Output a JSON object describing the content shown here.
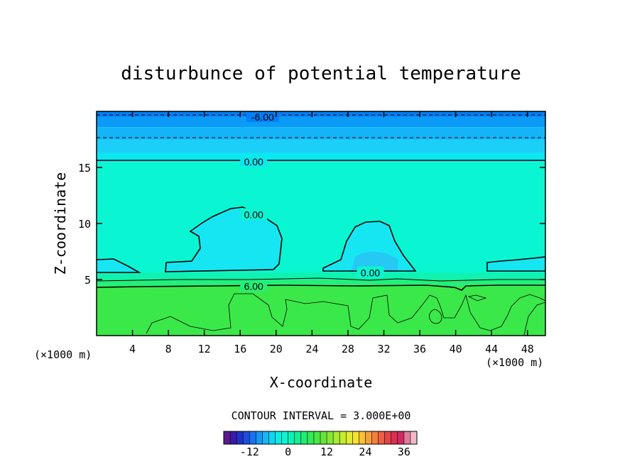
{
  "chart_data": {
    "type": "contour-filled",
    "title": "disturbunce of potential temperature",
    "xlabel": "X-coordinate",
    "ylabel": "Z-coordinate",
    "x_unit": "(×1000 m)",
    "y_unit": "(×1000 m)",
    "xlim": [
      0,
      50
    ],
    "ylim": [
      0,
      20
    ],
    "xticks": [
      4,
      8,
      12,
      16,
      20,
      24,
      28,
      32,
      36,
      40,
      44,
      48
    ],
    "yticks": [
      5,
      10,
      15
    ],
    "contour_interval_label": "CONTOUR INTERVAL = 3.000E+00",
    "contour_interval": 3.0,
    "contour_labels": [
      {
        "text": "-6.00",
        "x": 18.5,
        "z": 19.5
      },
      {
        "text": "0.00",
        "x": 17.5,
        "z": 15.5
      },
      {
        "text": "0.00",
        "x": 17.5,
        "z": 10.8
      },
      {
        "text": "0.00",
        "x": 30.5,
        "z": 5.6
      },
      {
        "text": "6.00",
        "x": 17.5,
        "z": 4.4
      }
    ],
    "bands": [
      {
        "z0": 19.5,
        "z1": 20.0,
        "color": "#007ff8"
      },
      {
        "z0": 18.6,
        "z1": 19.5,
        "color": "#0a9af8"
      },
      {
        "z0": 17.5,
        "z1": 18.6,
        "color": "#14b5f8"
      },
      {
        "z0": 16.3,
        "z1": 17.5,
        "color": "#1ccff8"
      },
      {
        "z0": 15.5,
        "z1": 16.3,
        "color": "#0ce8f0"
      },
      {
        "z0": 5.6,
        "z1": 15.5,
        "color": "#0af5d2"
      },
      {
        "z0": 5.0,
        "z1": 5.6,
        "color": "#10f2b0"
      },
      {
        "z0": 4.4,
        "z1": 5.0,
        "color": "#24ef7a"
      },
      {
        "z0": 0.0,
        "z1": 4.4,
        "color": "#3be84a"
      }
    ],
    "colorbar": {
      "tick_labels": [
        "-12",
        "0",
        "12",
        "24",
        "36"
      ],
      "tick_values": [
        -12,
        0,
        12,
        24,
        36
      ],
      "range": [
        -20,
        40
      ],
      "colors": [
        "#5a1a8c",
        "#3a1aa8",
        "#2230c8",
        "#1a4ee0",
        "#1a72f0",
        "#1896f6",
        "#18b6f8",
        "#10d6f4",
        "#0aeee6",
        "#0af5d2",
        "#0af2b4",
        "#12ef94",
        "#22ec72",
        "#34ea56",
        "#48e844",
        "#66e63c",
        "#86e836",
        "#a6ea32",
        "#c4ec30",
        "#e0ec30",
        "#f6e232",
        "#f8c236",
        "#f6a03a",
        "#f2803e",
        "#ec6042",
        "#e44448",
        "#da3050",
        "#ce2a62",
        "#e07a9a",
        "#f0b8c8"
      ]
    }
  }
}
